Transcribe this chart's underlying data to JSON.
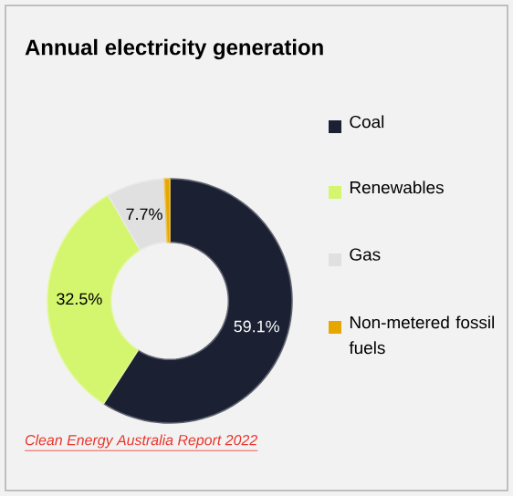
{
  "chart_data": {
    "type": "donut",
    "title": "Annual electricity generation",
    "categories": [
      "Coal",
      "Renewables",
      "Gas",
      "Non-metered fossil fuels"
    ],
    "values": [
      59.1,
      32.5,
      7.7,
      0.7
    ],
    "colors": [
      "#1c2033",
      "#d4f56e",
      "#e0e0e0",
      "#e6a800"
    ],
    "value_labels": [
      "59.1%",
      "32.5%",
      "7.7%",
      null
    ],
    "legend": "right",
    "annotations": [
      "Clean Energy Australia Report 2022"
    ]
  }
}
